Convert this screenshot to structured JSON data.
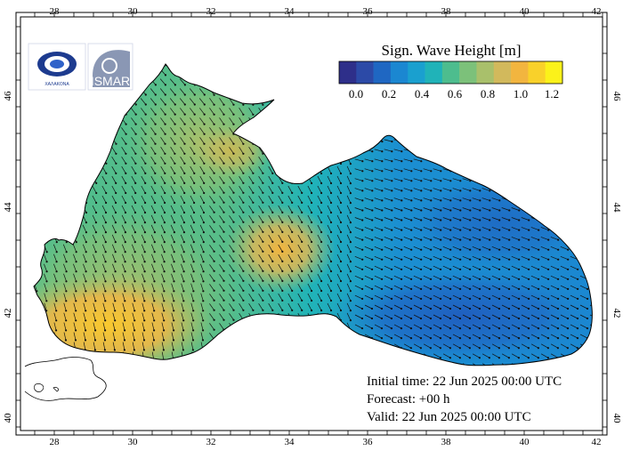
{
  "map": {
    "lon_ticks": [
      "28",
      "30",
      "32",
      "34",
      "36",
      "38",
      "40",
      "42"
    ],
    "lat_ticks": [
      "40",
      "42",
      "44",
      "46"
    ],
    "colorbar": {
      "title": "Sign. Wave Height [m]",
      "labels": [
        "0.0",
        "0.2",
        "0.4",
        "0.6",
        "0.8",
        "1.0",
        "1.2"
      ],
      "colors": [
        "#2e2f8a",
        "#2c4aa7",
        "#1f67c2",
        "#1b87d1",
        "#1aa0cf",
        "#20b3b8",
        "#4dbd8e",
        "#7cc17a",
        "#a9c06b",
        "#d2b95c",
        "#f2b53f",
        "#f9d12a",
        "#fbf21a"
      ]
    },
    "logos": {
      "left_text": "ΧΑΛΑΚΟΝΑ",
      "right_text": "ISMAR"
    },
    "info": {
      "initial": "Initial time: 22 Jun 2025 00:00 UTC",
      "forecast": "Forecast: +00 h",
      "valid": "Valid: 22 Jun 2025 00:00 UTC"
    },
    "colors": {
      "sea_deep": "#1f67c2",
      "sea_mid": "#1b87d1",
      "sea_green": "#7cc17a",
      "sea_high": "#f2b53f"
    }
  }
}
